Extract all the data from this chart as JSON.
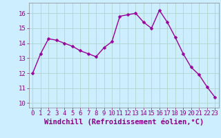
{
  "x": [
    0,
    1,
    2,
    3,
    4,
    5,
    6,
    7,
    8,
    9,
    10,
    11,
    12,
    13,
    14,
    15,
    16,
    17,
    18,
    19,
    20,
    21,
    22,
    23
  ],
  "y": [
    12.0,
    13.3,
    14.3,
    14.2,
    14.0,
    13.8,
    13.5,
    13.3,
    13.1,
    13.7,
    14.1,
    15.8,
    15.9,
    16.0,
    15.4,
    15.0,
    16.2,
    15.4,
    14.4,
    13.3,
    12.4,
    11.9,
    11.1,
    10.4
  ],
  "line_color": "#990099",
  "marker": "D",
  "marker_size": 2.5,
  "bg_color": "#cceeff",
  "grid_color": "#aaddcc",
  "xlabel": "Windchill (Refroidissement éolien,°C)",
  "xticks": [
    0,
    1,
    2,
    3,
    4,
    5,
    6,
    7,
    8,
    9,
    10,
    11,
    12,
    13,
    14,
    15,
    16,
    17,
    18,
    19,
    20,
    21,
    22,
    23
  ],
  "yticks": [
    10,
    11,
    12,
    13,
    14,
    15,
    16
  ],
  "ylim": [
    9.7,
    16.7
  ],
  "xlim": [
    -0.5,
    23.5
  ],
  "tick_label_fontsize": 6.5,
  "xlabel_fontsize": 7.5,
  "linewidth": 1.0
}
